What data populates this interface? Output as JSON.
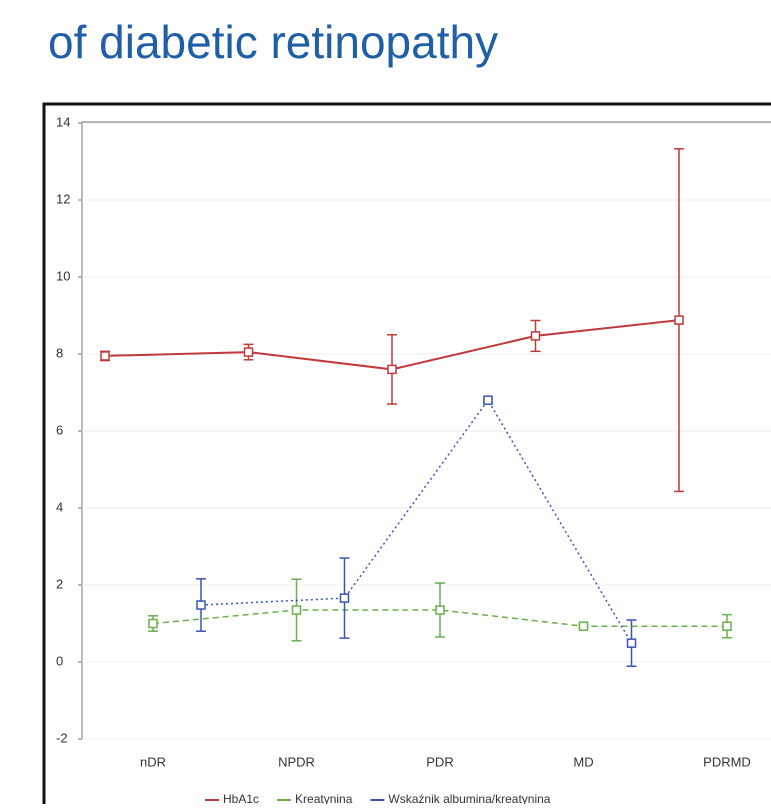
{
  "chart_data": {
    "type": "line",
    "title": "of diabetic retinopathy",
    "categories": [
      "nDR",
      "NPDR",
      "PDR",
      "MD",
      "PDRMD"
    ],
    "series": [
      {
        "name": "HbA1c",
        "color": "#c0393b",
        "style": "solid",
        "values": [
          7.95,
          8.05,
          7.6,
          8.47,
          8.88
        ],
        "errors": [
          0.12,
          0.2,
          0.9,
          0.4,
          4.45
        ]
      },
      {
        "name": "Kreatynina",
        "color": "#6ab04c",
        "style": "dashed",
        "values": [
          1.0,
          1.35,
          1.35,
          0.93,
          0.93
        ],
        "errors": [
          0.2,
          0.8,
          0.7,
          0.05,
          0.3
        ]
      },
      {
        "name": "Wskaźnik albumina/kreatynina",
        "color": "#3a55b4",
        "style": "dotted",
        "values": [
          1.48,
          1.66,
          6.8,
          0.49,
          null
        ],
        "errors": [
          0.68,
          1.04,
          0.05,
          0.6,
          null
        ]
      }
    ],
    "ylim": [
      -2,
      14
    ],
    "yticks": [
      -2,
      0,
      2,
      4,
      6,
      8,
      10,
      12,
      14
    ],
    "grid": true
  }
}
